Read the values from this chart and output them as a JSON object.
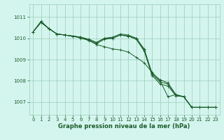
{
  "background_color": "#d4f5ee",
  "grid_color": "#99ccbb",
  "line_color": "#1a5c2a",
  "title": "Graphe pression niveau de la mer (hPa)",
  "xlim": [
    -0.5,
    23.5
  ],
  "ylim": [
    1006.4,
    1011.6
  ],
  "yticks": [
    1007,
    1008,
    1009,
    1010,
    1011
  ],
  "xticks": [
    0,
    1,
    2,
    3,
    4,
    5,
    6,
    7,
    8,
    9,
    10,
    11,
    12,
    13,
    14,
    15,
    16,
    17,
    18,
    19,
    20,
    21,
    22,
    23
  ],
  "series": [
    [
      1010.3,
      1010.8,
      1010.45,
      1010.2,
      1010.15,
      1010.1,
      1010.05,
      1009.9,
      1009.7,
      1009.6,
      1009.5,
      1009.45,
      1009.35,
      1009.1,
      1008.85,
      1008.4,
      1008.0,
      1007.25,
      1007.35,
      1007.25,
      1006.75,
      1006.75,
      1006.75,
      1006.75
    ],
    [
      1010.3,
      1010.75,
      1010.45,
      1010.2,
      1010.15,
      1010.1,
      1010.05,
      1009.95,
      1009.8,
      1010.0,
      1010.0,
      1010.15,
      1010.1,
      1010.0,
      1009.45,
      1008.3,
      1007.95,
      1007.85,
      1007.3,
      1007.25,
      1006.75,
      1006.75,
      1006.75,
      1006.75
    ],
    [
      1010.3,
      1010.75,
      1010.45,
      1010.2,
      1010.15,
      1010.1,
      1010.05,
      1009.95,
      1009.8,
      1010.0,
      1010.05,
      1010.2,
      1010.15,
      1010.0,
      1009.5,
      1008.35,
      1008.05,
      1007.9,
      1007.35,
      1007.25,
      1006.75,
      1006.75,
      1006.75,
      1006.75
    ],
    [
      1010.3,
      1010.75,
      1010.45,
      1010.2,
      1010.15,
      1010.1,
      1010.0,
      1009.9,
      1009.75,
      1009.95,
      1010.0,
      1010.15,
      1010.1,
      1009.95,
      1009.4,
      1008.25,
      1007.85,
      1007.75,
      1007.3,
      1007.25,
      1006.75,
      1006.75,
      1006.75,
      1006.75
    ]
  ],
  "tick_fontsize": 5,
  "label_fontsize": 6
}
